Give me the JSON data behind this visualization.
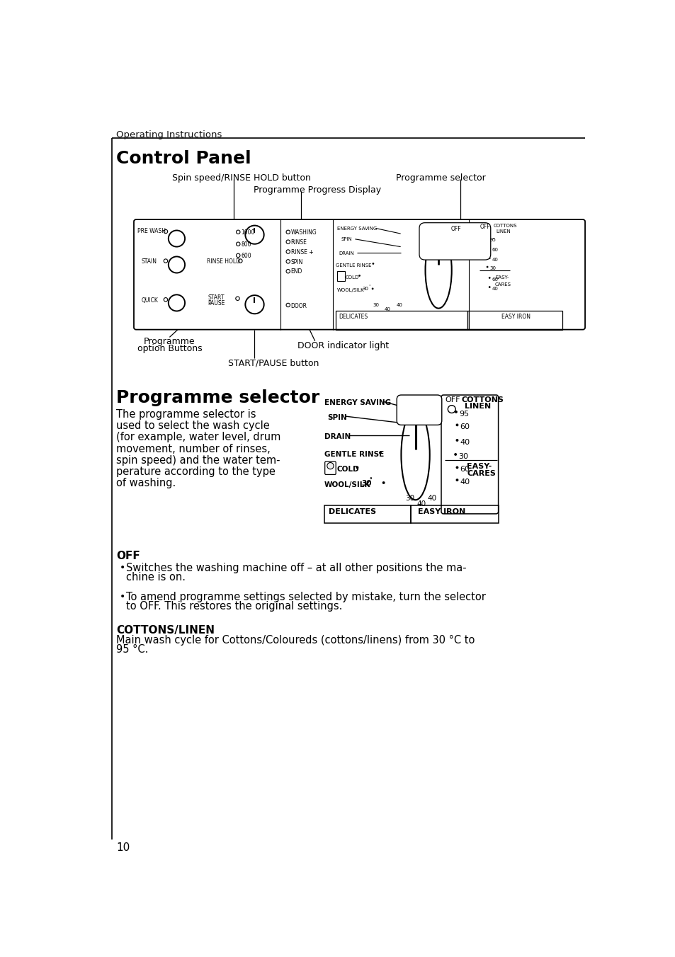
{
  "page_title": "Operating Instructions",
  "section1_title": "Control Panel",
  "section2_title": "Programme selector",
  "section2_body_lines": [
    "The programme selector is",
    "used to select the wash cycle",
    "(for example, water level, drum",
    "movement, number of rinses,",
    "spin speed) and the water tem-",
    "perature according to the type",
    "of washing."
  ],
  "off_title": "OFF",
  "off_bullets": [
    "Switches the washing machine off – at all other positions the ma-\nchine is on.",
    "To amend programme settings selected by mistake, turn the selector\nto OFF. This restores the original settings."
  ],
  "cottons_title": "COTTONS/LINEN",
  "cottons_body": "Main wash cycle for Cottons/Coloureds (cottons/linens) from 30 °C to\n95 °C.",
  "page_number": "10",
  "bg_color": "#ffffff",
  "text_color": "#000000"
}
